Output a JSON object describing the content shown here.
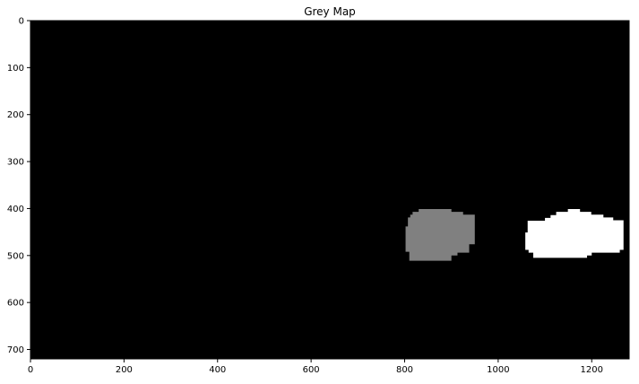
{
  "chart_data": {
    "type": "heatmap",
    "title": "Grey Map",
    "xlabel": "",
    "ylabel": "",
    "xlim": [
      0,
      1280
    ],
    "ylim": [
      720,
      0
    ],
    "x_ticks": [
      0,
      200,
      400,
      600,
      800,
      1000,
      1200
    ],
    "y_ticks": [
      0,
      100,
      200,
      300,
      400,
      500,
      600,
      700
    ],
    "grid": false,
    "colormap": "gray",
    "background_color": "#000000",
    "regions": [
      {
        "value": 128,
        "color": "#808080",
        "outline": [
          [
            830,
            401
          ],
          [
            900,
            401
          ],
          [
            900,
            407
          ],
          [
            925,
            407
          ],
          [
            925,
            413
          ],
          [
            950,
            413
          ],
          [
            950,
            476
          ],
          [
            938,
            476
          ],
          [
            938,
            494
          ],
          [
            913,
            494
          ],
          [
            913,
            500
          ],
          [
            900,
            500
          ],
          [
            900,
            511
          ],
          [
            810,
            511
          ],
          [
            810,
            492
          ],
          [
            802,
            492
          ],
          [
            802,
            438
          ],
          [
            807,
            438
          ],
          [
            807,
            419
          ],
          [
            812,
            419
          ],
          [
            812,
            413
          ],
          [
            817,
            413
          ],
          [
            817,
            407
          ],
          [
            830,
            407
          ]
        ]
      },
      {
        "value": 255,
        "color": "#ffffff",
        "outline": [
          [
            1149,
            401
          ],
          [
            1175,
            401
          ],
          [
            1175,
            407
          ],
          [
            1199,
            407
          ],
          [
            1199,
            413
          ],
          [
            1225,
            413
          ],
          [
            1225,
            419
          ],
          [
            1246,
            419
          ],
          [
            1246,
            425
          ],
          [
            1268,
            425
          ],
          [
            1268,
            488
          ],
          [
            1260,
            488
          ],
          [
            1260,
            494
          ],
          [
            1200,
            494
          ],
          [
            1200,
            500
          ],
          [
            1190,
            500
          ],
          [
            1190,
            505
          ],
          [
            1075,
            505
          ],
          [
            1075,
            494
          ],
          [
            1065,
            494
          ],
          [
            1065,
            488
          ],
          [
            1058,
            488
          ],
          [
            1058,
            451
          ],
          [
            1063,
            451
          ],
          [
            1063,
            426
          ],
          [
            1100,
            426
          ],
          [
            1100,
            420
          ],
          [
            1112,
            420
          ],
          [
            1112,
            414
          ],
          [
            1124,
            414
          ],
          [
            1124,
            407
          ],
          [
            1149,
            407
          ]
        ]
      }
    ]
  }
}
